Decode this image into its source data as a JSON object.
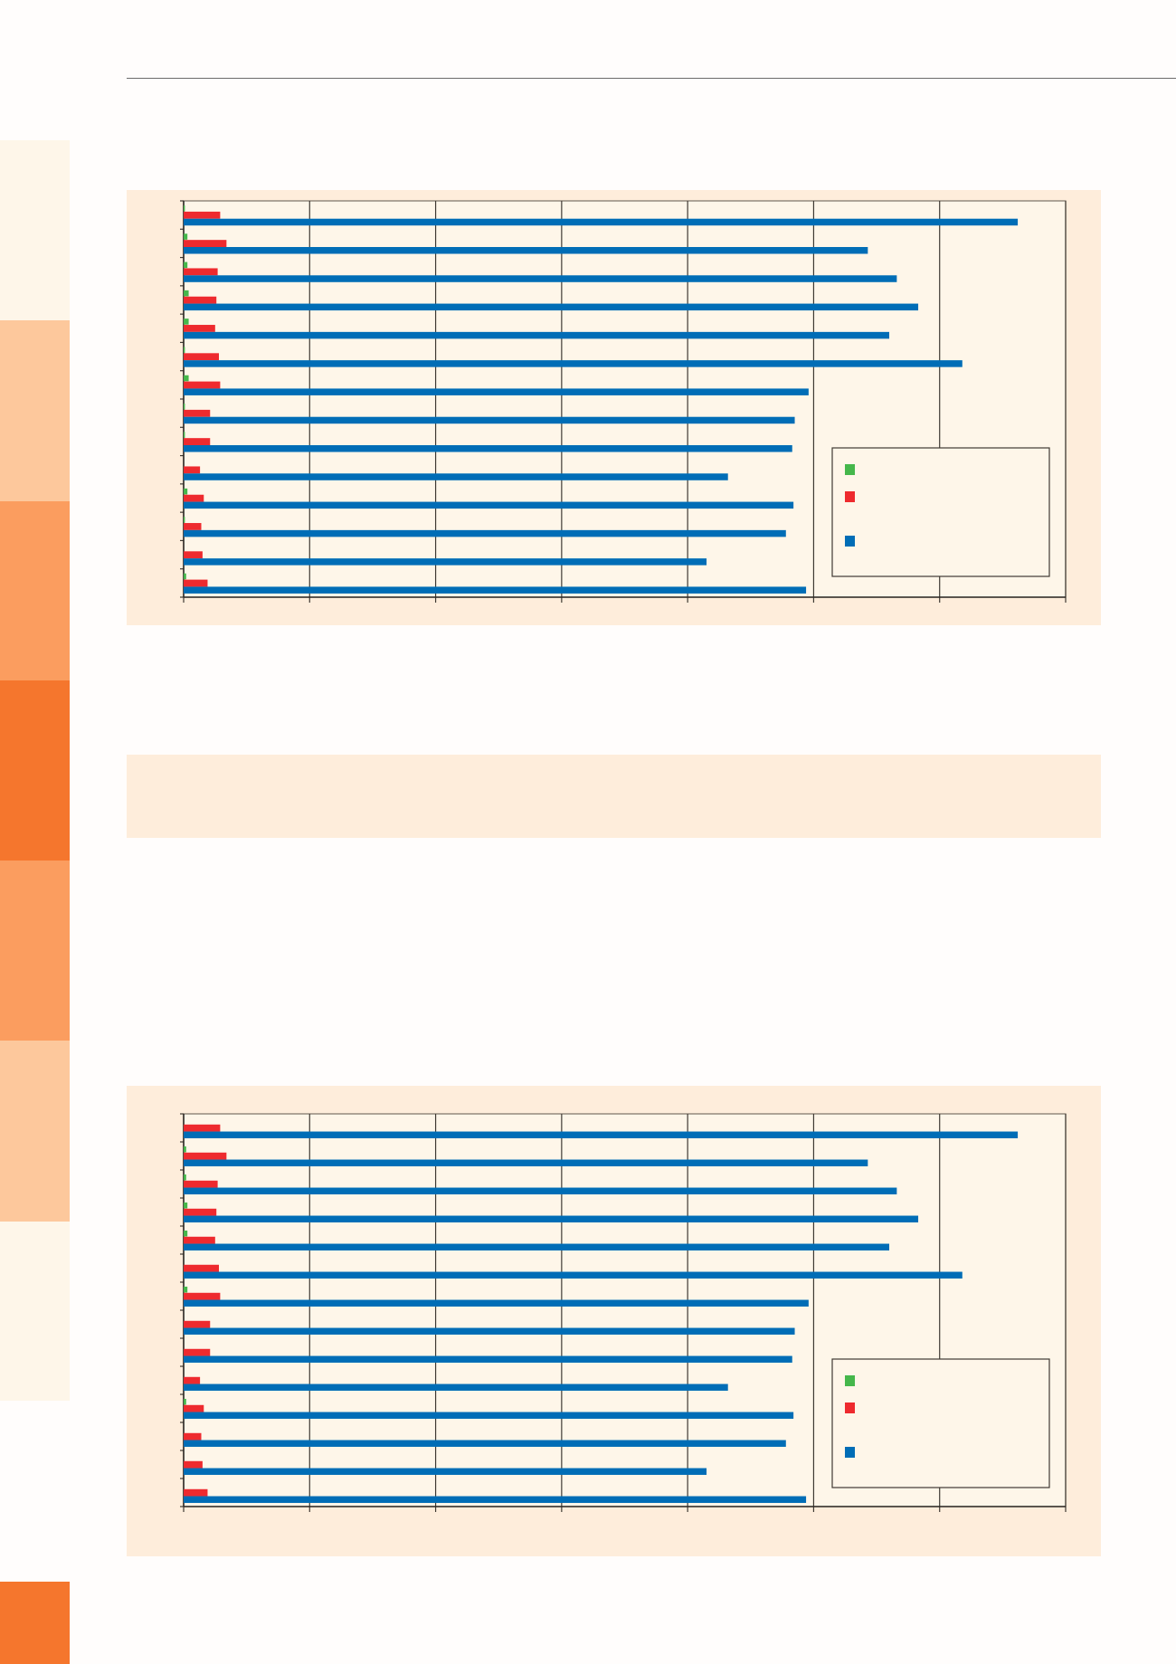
{
  "colors": {
    "plot_background": "#fef6e9",
    "panel_background": "#feeddb",
    "series_blue": "#006db6",
    "series_red": "#ee2a2e",
    "series_green": "#45b74b",
    "sidebar_bands": [
      "#fef6e9",
      "#fdc89c",
      "#fb9d5f",
      "#f5762d",
      "#fb9d5f",
      "#fdc89c",
      "#fef6e9"
    ],
    "sidebar_bottom_tab": "#f5762d"
  },
  "chart_data": [
    {
      "type": "bar",
      "orientation": "horizontal",
      "grid": true,
      "legend_placement": "bottom-right",
      "xlim": [
        0,
        7
      ],
      "category_count": 14,
      "series": [
        {
          "color": "#45b74b",
          "values": [
            0.01,
            0.03,
            0.03,
            0.04,
            0.04,
            0.01,
            0.04,
            0.01,
            0.01,
            0,
            0.03,
            0.01,
            0,
            0.02
          ]
        },
        {
          "color": "#ee2a2e",
          "values": [
            0.29,
            0.34,
            0.27,
            0.26,
            0.25,
            0.28,
            0.29,
            0.21,
            0.21,
            0.13,
            0.16,
            0.14,
            0.15,
            0.19
          ]
        },
        {
          "color": "#006db6",
          "values": [
            6.62,
            5.43,
            5.66,
            5.83,
            5.6,
            6.18,
            4.96,
            4.85,
            4.83,
            4.32,
            4.84,
            4.78,
            4.15,
            4.94
          ]
        }
      ]
    },
    {
      "type": "bar",
      "orientation": "horizontal",
      "grid": true,
      "legend_placement": "bottom-right",
      "xlim": [
        0,
        7
      ],
      "category_count": 14,
      "series": [
        {
          "color": "#45b74b",
          "values": [
            0,
            0.02,
            0.02,
            0.03,
            0.03,
            0,
            0.03,
            0,
            0,
            0,
            0.02,
            0,
            0,
            0
          ]
        },
        {
          "color": "#ee2a2e",
          "values": [
            0.29,
            0.34,
            0.27,
            0.26,
            0.25,
            0.28,
            0.29,
            0.21,
            0.21,
            0.13,
            0.16,
            0.14,
            0.15,
            0.19
          ]
        },
        {
          "color": "#006db6",
          "values": [
            6.62,
            5.43,
            5.66,
            5.83,
            5.6,
            6.18,
            4.96,
            4.85,
            4.83,
            4.32,
            4.84,
            4.78,
            4.15,
            4.94
          ]
        }
      ]
    }
  ]
}
